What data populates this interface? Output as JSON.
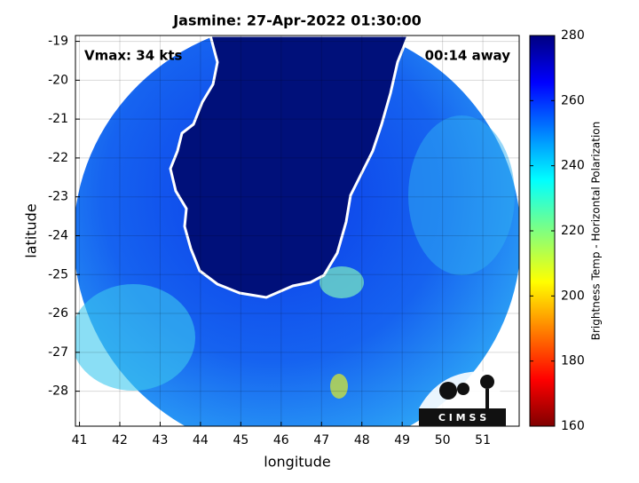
{
  "chart_data": {
    "type": "map",
    "title": "Jasmine: 27-Apr-2022 01:30:00",
    "annotations": [
      "Vmax: 34 kts",
      "00:14 away"
    ],
    "xlabel": "longitude",
    "ylabel": "latitude",
    "xlim": [
      40.9,
      51.9
    ],
    "ylim": [
      -28.9,
      -18.85
    ],
    "xticks": [
      41,
      42,
      43,
      44,
      45,
      46,
      47,
      48,
      49,
      50,
      51
    ],
    "yticks": [
      -28,
      -27,
      -26,
      -25,
      -24,
      -23,
      -22,
      -21,
      -20,
      -19
    ],
    "grid": true,
    "colorbar": {
      "label": "Brightness Temp - Horizontal Polarization",
      "lim": [
        160,
        280
      ],
      "ticks": [
        160,
        180,
        200,
        220,
        240,
        260,
        280
      ]
    },
    "logo_text": "C I M S S"
  }
}
